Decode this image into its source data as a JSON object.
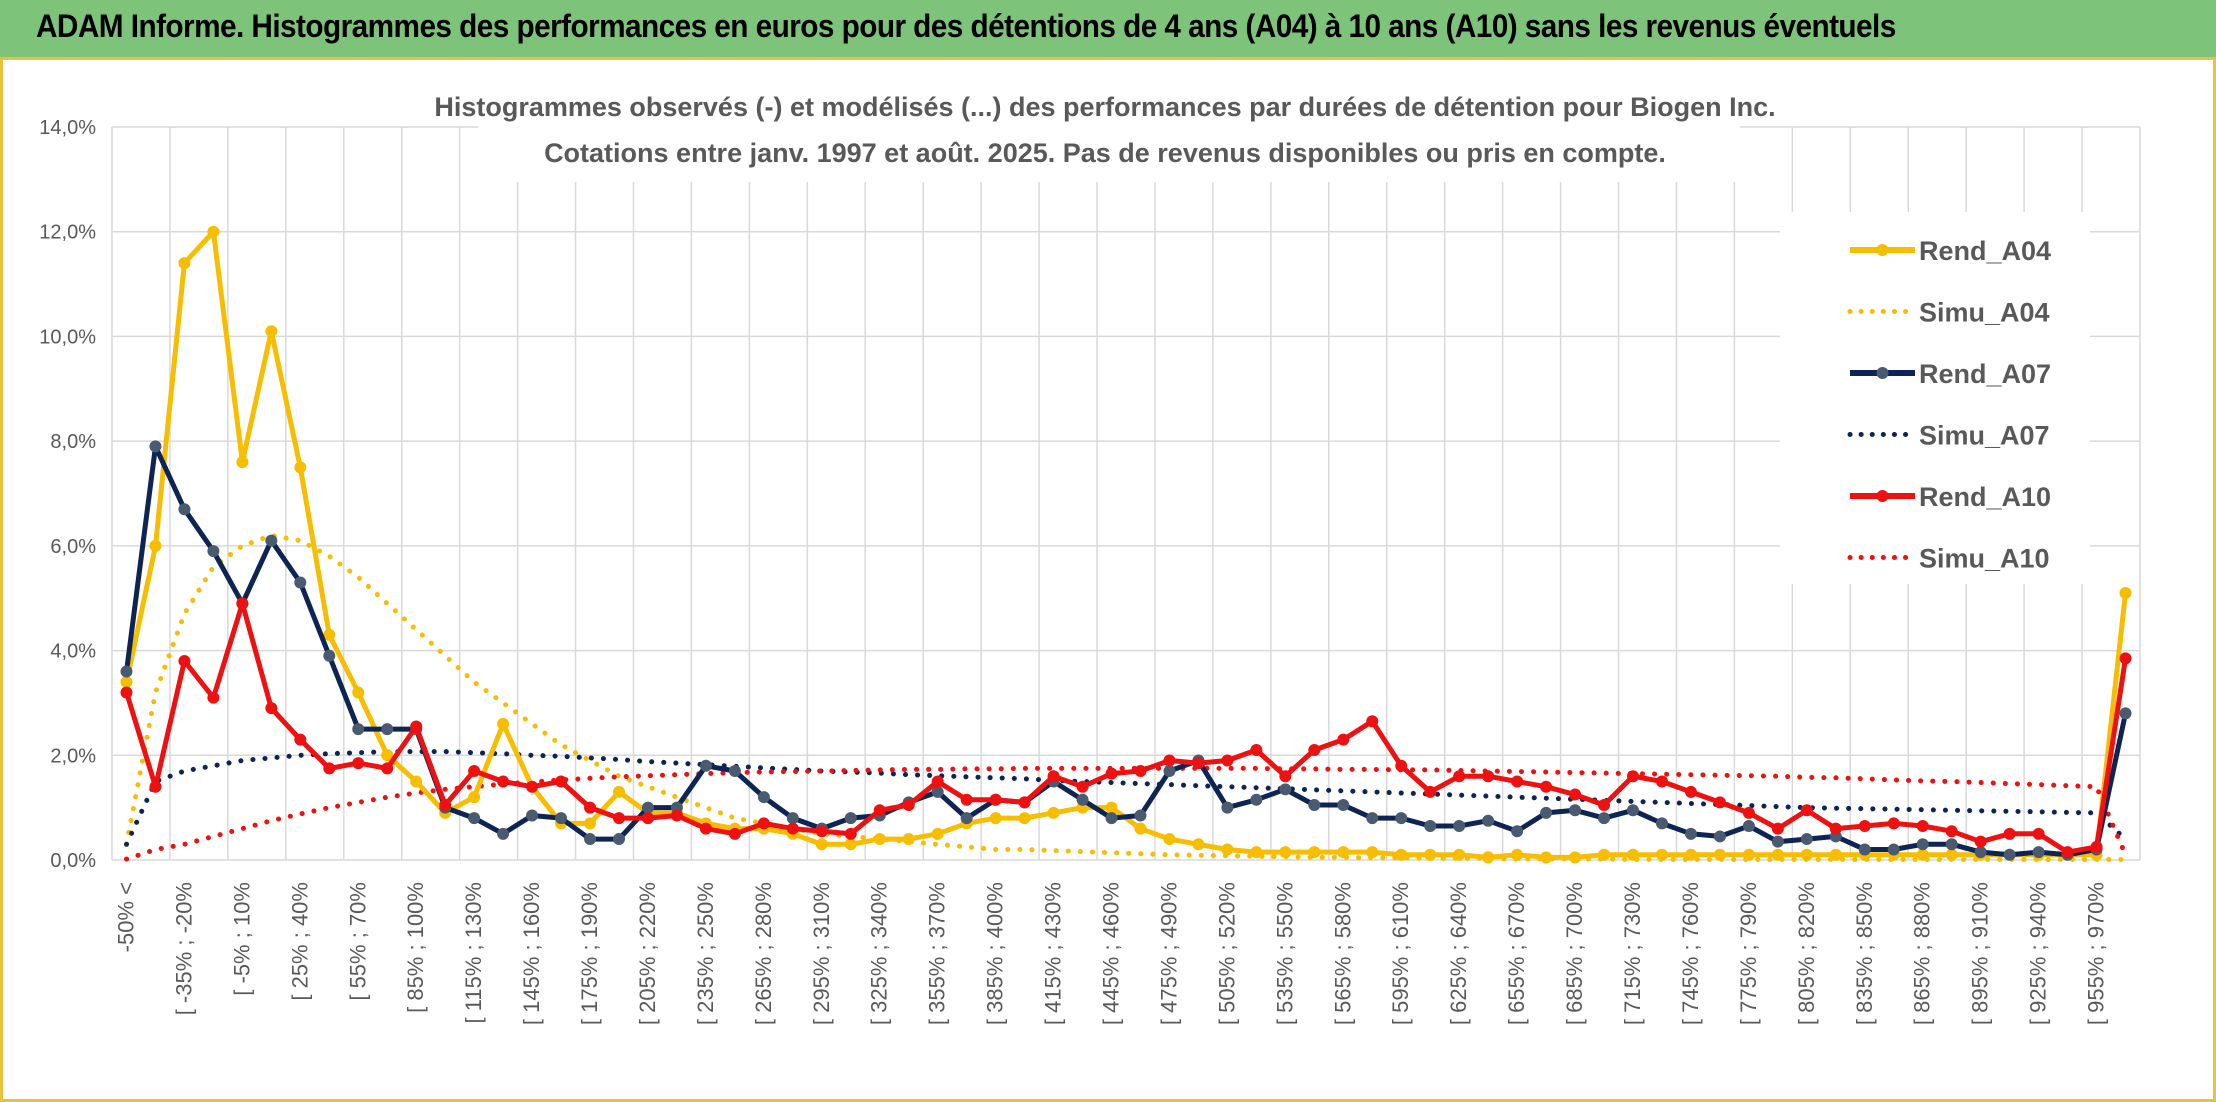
{
  "header": {
    "title": "ADAM Informe. Histogrammes des performances en euros pour des détentions de 4 ans (A04) à 10 ans (A10) sans les revenus éventuels"
  },
  "colors": {
    "A04": "#f7bd00",
    "A07": "#0d2454",
    "A10": "#ee1111",
    "marker_A07": "#4a5a70",
    "grid": "#d9d9d9",
    "text": "#595959",
    "banner": "#7dc47a",
    "frame": "#e8c23a"
  },
  "chart_data": {
    "type": "line",
    "title": "Histogrammes observés (-) et modélisés (...) des performances par durées de détention pour Biogen Inc.",
    "subtitle": "Cotations entre janv. 1997 et août. 2025. Pas de revenus disponibles ou pris en compte.",
    "ylim": [
      0,
      0.14
    ],
    "yticks": [
      "0,0%",
      "2,0%",
      "4,0%",
      "6,0%",
      "8,0%",
      "10,0%",
      "12,0%",
      "14,0%"
    ],
    "grid": true,
    "legend_position": "top-right",
    "x_labels": [
      "-50% <",
      "[ -35% ; -20%",
      "[ -5% ; 10%",
      "[ 25% ; 40%",
      "[ 55% ; 70%",
      "[ 85% ; 100%",
      "[ 115% ; 130%",
      "[ 145% ; 160%",
      "[ 175% ; 190%",
      "[ 205% ; 220%",
      "[ 235% ; 250%",
      "[ 265% ; 280%",
      "[ 295% ; 310%",
      "[ 325% ; 340%",
      "[ 355% ; 370%",
      "[ 385% ; 400%",
      "[ 415% ; 430%",
      "[ 445% ; 460%",
      "[ 475% ; 490%",
      "[ 505% ; 520%",
      "[ 535% ; 550%",
      "[ 565% ; 580%",
      "[ 595% ; 610%",
      "[ 625% ; 640%",
      "[ 655% ; 670%",
      "[ 685% ; 700%",
      "[ 715% ; 730%",
      "[ 745% ; 760%",
      "[ 775% ; 790%",
      "[ 805% ; 820%",
      "[ 835% ; 850%",
      "[ 865% ; 880%",
      "[ 895% ; 910%",
      "[ 925% ; 940%",
      "[ 955% ; 970%"
    ],
    "series": [
      {
        "name": "Rend_A04",
        "style": "solid",
        "markers": true,
        "color_key": "A04",
        "values": [
          0.034,
          0.06,
          0.114,
          0.12,
          0.076,
          0.101,
          0.075,
          0.043,
          0.032,
          0.02,
          0.015,
          0.009,
          0.012,
          0.026,
          0.014,
          0.007,
          0.007,
          0.013,
          0.009,
          0.009,
          0.007,
          0.006,
          0.006,
          0.005,
          0.003,
          0.003,
          0.004,
          0.004,
          0.005,
          0.007,
          0.008,
          0.008,
          0.009,
          0.01,
          0.01,
          0.006,
          0.004,
          0.003,
          0.002,
          0.0015,
          0.0015,
          0.0015,
          0.0015,
          0.0015,
          0.001,
          0.001,
          0.001,
          0.0005,
          0.001,
          0.0005,
          0.0005,
          0.001,
          0.001,
          0.001,
          0.001,
          0.001,
          0.001,
          0.001,
          0.001,
          0.001,
          0.001,
          0.001,
          0.001,
          0.001,
          0.001,
          0.001,
          0.001,
          0.001,
          0.001,
          0.051
        ]
      },
      {
        "name": "Simu_A04",
        "style": "dotted",
        "markers": false,
        "color_key": "A04",
        "values": [
          0.003,
          0.032,
          0.047,
          0.056,
          0.06,
          0.062,
          0.061,
          0.058,
          0.054,
          0.049,
          0.044,
          0.039,
          0.034,
          0.03,
          0.026,
          0.022,
          0.019,
          0.016,
          0.014,
          0.012,
          0.01,
          0.008,
          0.007,
          0.006,
          0.005,
          0.0045,
          0.004,
          0.0035,
          0.003,
          0.0025,
          0.002,
          0.002,
          0.0018,
          0.0016,
          0.0014,
          0.0012,
          0.001,
          0.0009,
          0.0008,
          0.0007,
          0.0006,
          0.0005,
          0.0005,
          0.0004,
          0.0004,
          0.0003,
          0.0003,
          0.0003,
          0.0002,
          0.0002,
          0.0002,
          0.0002,
          0.0001,
          0.0001,
          0.0001,
          0.0001,
          0.0001,
          0.0001,
          0.0001,
          0.0001,
          0.0001,
          0.0001,
          0.0001,
          0.0001,
          0.0001,
          0.0001,
          0.0001,
          0.0001,
          0.0001,
          0.0001
        ]
      },
      {
        "name": "Rend_A07",
        "style": "solid",
        "markers": true,
        "color_key": "A07",
        "values": [
          0.036,
          0.079,
          0.067,
          0.059,
          0.049,
          0.061,
          0.053,
          0.039,
          0.025,
          0.025,
          0.025,
          0.01,
          0.008,
          0.005,
          0.0085,
          0.008,
          0.004,
          0.004,
          0.01,
          0.01,
          0.018,
          0.017,
          0.012,
          0.008,
          0.006,
          0.008,
          0.0085,
          0.011,
          0.013,
          0.008,
          0.0115,
          0.011,
          0.015,
          0.0115,
          0.008,
          0.0085,
          0.017,
          0.019,
          0.01,
          0.0115,
          0.0135,
          0.0105,
          0.0105,
          0.008,
          0.008,
          0.0065,
          0.0065,
          0.0075,
          0.0055,
          0.009,
          0.0095,
          0.008,
          0.0095,
          0.007,
          0.005,
          0.0045,
          0.0065,
          0.0035,
          0.004,
          0.0045,
          0.002,
          0.002,
          0.003,
          0.003,
          0.0015,
          0.001,
          0.0015,
          0.001,
          0.002,
          0.028
        ]
      },
      {
        "name": "Simu_A07",
        "style": "dotted",
        "markers": false,
        "color_key": "A07",
        "values": [
          0.003,
          0.015,
          0.017,
          0.018,
          0.019,
          0.0195,
          0.02,
          0.0203,
          0.0205,
          0.0207,
          0.0207,
          0.0207,
          0.0205,
          0.0203,
          0.02,
          0.0198,
          0.0195,
          0.0192,
          0.0188,
          0.0185,
          0.0182,
          0.0179,
          0.0176,
          0.0173,
          0.017,
          0.0168,
          0.0166,
          0.0163,
          0.0161,
          0.0159,
          0.0157,
          0.0155,
          0.0152,
          0.015,
          0.0148,
          0.0146,
          0.0144,
          0.0142,
          0.014,
          0.0138,
          0.0136,
          0.0134,
          0.0132,
          0.013,
          0.0128,
          0.0126,
          0.0124,
          0.0122,
          0.012,
          0.0118,
          0.0116,
          0.0114,
          0.0112,
          0.011,
          0.0108,
          0.0106,
          0.0104,
          0.0102,
          0.01,
          0.0099,
          0.0098,
          0.0097,
          0.0096,
          0.0095,
          0.0094,
          0.0093,
          0.0092,
          0.0091,
          0.009,
          0.004
        ]
      },
      {
        "name": "Rend_A10",
        "style": "solid",
        "markers": true,
        "color_key": "A10",
        "values": [
          0.032,
          0.014,
          0.038,
          0.031,
          0.049,
          0.029,
          0.023,
          0.0175,
          0.0185,
          0.0175,
          0.0255,
          0.0105,
          0.017,
          0.015,
          0.014,
          0.015,
          0.01,
          0.008,
          0.008,
          0.0085,
          0.006,
          0.005,
          0.007,
          0.006,
          0.0055,
          0.005,
          0.0095,
          0.0105,
          0.015,
          0.0115,
          0.0115,
          0.011,
          0.016,
          0.014,
          0.0165,
          0.017,
          0.019,
          0.0185,
          0.019,
          0.021,
          0.016,
          0.021,
          0.023,
          0.0265,
          0.018,
          0.013,
          0.016,
          0.016,
          0.015,
          0.014,
          0.0125,
          0.0105,
          0.016,
          0.015,
          0.013,
          0.011,
          0.009,
          0.006,
          0.0095,
          0.006,
          0.0065,
          0.007,
          0.0065,
          0.0055,
          0.0035,
          0.005,
          0.005,
          0.0015,
          0.0025,
          0.0385
        ]
      },
      {
        "name": "Simu_A10",
        "style": "dotted",
        "markers": false,
        "color_key": "A10",
        "values": [
          0.0002,
          0.002,
          0.003,
          0.0045,
          0.006,
          0.0075,
          0.0088,
          0.01,
          0.011,
          0.012,
          0.0128,
          0.0135,
          0.014,
          0.0145,
          0.0149,
          0.0153,
          0.0156,
          0.0159,
          0.0161,
          0.0163,
          0.0165,
          0.0167,
          0.0168,
          0.0169,
          0.017,
          0.0171,
          0.0172,
          0.0173,
          0.0173,
          0.0174,
          0.0174,
          0.0175,
          0.0175,
          0.0175,
          0.0175,
          0.0175,
          0.0175,
          0.0175,
          0.0175,
          0.0175,
          0.0174,
          0.0174,
          0.0173,
          0.0173,
          0.0172,
          0.0172,
          0.0171,
          0.017,
          0.0169,
          0.0168,
          0.0167,
          0.0166,
          0.0165,
          0.0164,
          0.0163,
          0.0162,
          0.0161,
          0.016,
          0.0158,
          0.0157,
          0.0155,
          0.0153,
          0.0151,
          0.015,
          0.0148,
          0.0146,
          0.0144,
          0.0142,
          0.014,
          0.001
        ]
      }
    ]
  }
}
